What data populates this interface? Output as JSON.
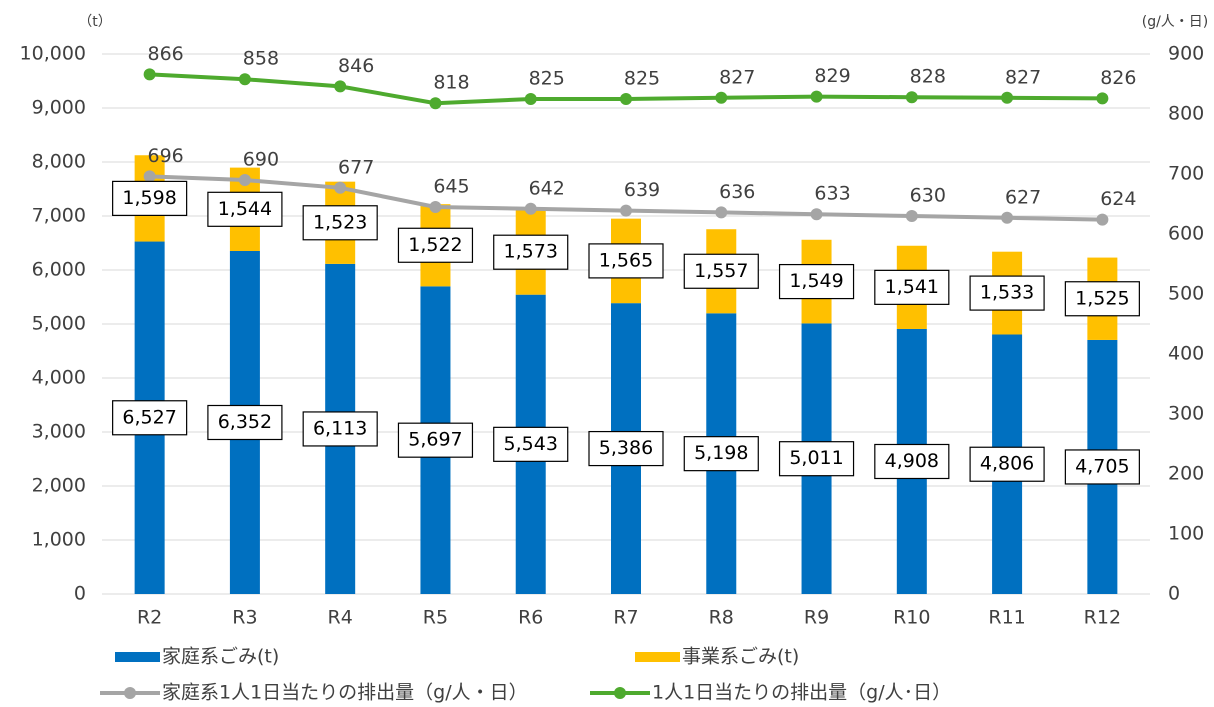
{
  "chart_data": {
    "type": "bar",
    "stacked": true,
    "y_unit": "（t）",
    "y2_unit": "(g/人・日)",
    "categories": [
      "R2",
      "R3",
      "R4",
      "R5",
      "R6",
      "R7",
      "R8",
      "R9",
      "R10",
      "R11",
      "R12"
    ],
    "series": [
      {
        "name": "家庭系ごみ(t)",
        "color": "#0070c0",
        "values": [
          6527,
          6352,
          6113,
          5697,
          5543,
          5386,
          5198,
          5011,
          4908,
          4806,
          4705
        ],
        "value_labels": [
          "6,527",
          "6,352",
          "6,113",
          "5,697",
          "5,543",
          "5,386",
          "5,198",
          "5,011",
          "4,908",
          "4,806",
          "4,705"
        ]
      },
      {
        "name": "事業系ごみ(t)",
        "color": "#ffc000",
        "values": [
          1598,
          1544,
          1523,
          1522,
          1573,
          1565,
          1557,
          1549,
          1541,
          1533,
          1525
        ],
        "value_labels": [
          "1,598",
          "1,544",
          "1,523",
          "1,522",
          "1,573",
          "1,565",
          "1,557",
          "1,549",
          "1,541",
          "1,533",
          "1,525"
        ]
      },
      {
        "name": "家庭系1人1日当たりの排出量（g/人・日）",
        "type": "line",
        "axis": "y2",
        "color": "#a5a5a5",
        "values": [
          696,
          690,
          677,
          645,
          642,
          639,
          636,
          633,
          630,
          627,
          624
        ]
      },
      {
        "name": "1人1日当たりの排出量（g/人･日）",
        "type": "line",
        "axis": "y2",
        "color": "#4eaa2e",
        "values": [
          866,
          858,
          846,
          818,
          825,
          825,
          827,
          829,
          828,
          827,
          826
        ]
      }
    ],
    "ylim": [
      0,
      10000
    ],
    "yticks": [
      0,
      {
        "value": 1000,
        "label": "1,000"
      },
      {
        "value": 2000,
        "label": "2,000"
      },
      {
        "value": 3000,
        "label": "3,000"
      },
      {
        "value": 4000,
        "label": "4,000"
      },
      {
        "value": 5000,
        "label": "5,000"
      },
      {
        "value": 6000,
        "label": "6,000"
      },
      {
        "value": 7000,
        "label": "7,000"
      },
      {
        "value": 8000,
        "label": "8,000"
      },
      {
        "value": 9000,
        "label": "9,000"
      },
      {
        "value": 10000,
        "label": "10,000"
      }
    ],
    "y2lim": [
      0,
      900
    ],
    "y2ticks": [
      0,
      100,
      200,
      300,
      400,
      500,
      600,
      700,
      800,
      900
    ],
    "grid": true
  }
}
